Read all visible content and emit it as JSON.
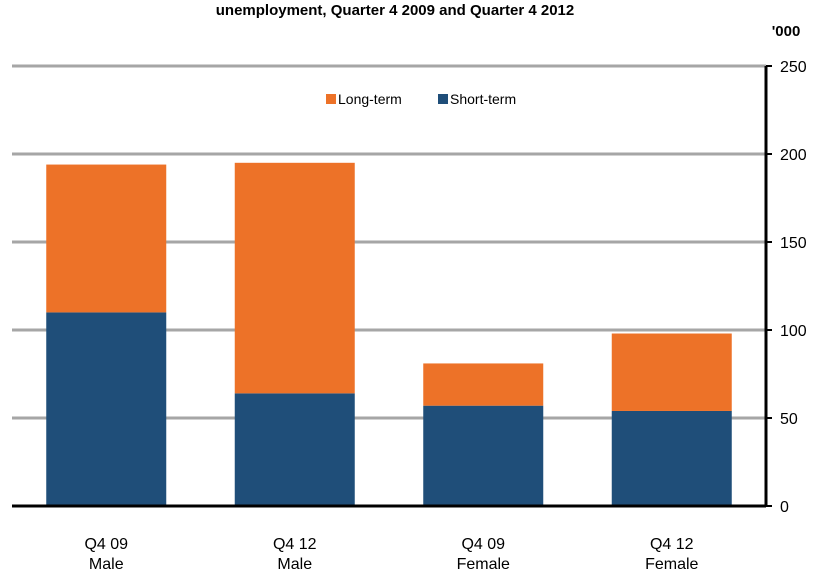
{
  "chart_data": {
    "type": "bar",
    "stacked": true,
    "title": "unemployment, Quarter 4 2009 and Quarter 4 2012",
    "ylabel": "'000",
    "ylim": [
      0,
      250
    ],
    "yticks": [
      0,
      50,
      100,
      150,
      200,
      250
    ],
    "y_axis_side": "right",
    "grid": true,
    "legend_position": "top-center",
    "categories": [
      [
        "Q4 09",
        "Male"
      ],
      [
        "Q4 12",
        "Male"
      ],
      [
        "Q4 09",
        "Female"
      ],
      [
        "Q4 12",
        "Female"
      ]
    ],
    "series": [
      {
        "name": "Short-term",
        "color": "#1f4e79",
        "values": [
          110,
          64,
          57,
          54
        ]
      },
      {
        "name": "Long-term",
        "color": "#ed7228",
        "values": [
          84,
          131,
          24,
          44
        ]
      }
    ],
    "legend_order": [
      "Long-term",
      "Short-term"
    ]
  },
  "colors": {
    "grid": "#a6a6a6",
    "axis": "#000000"
  }
}
